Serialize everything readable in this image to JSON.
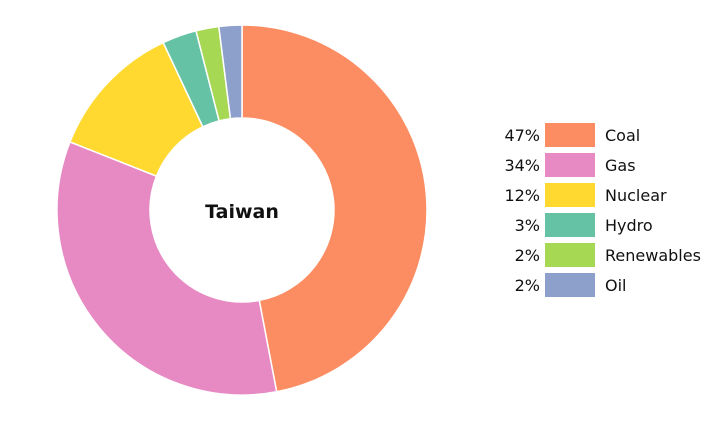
{
  "chart_data": {
    "type": "pie",
    "center_label": "Taiwan",
    "categories": [
      "Coal",
      "Gas",
      "Nuclear",
      "Hydro",
      "Renewables",
      "Oil"
    ],
    "values": [
      47,
      34,
      12,
      3,
      2,
      2
    ],
    "percent_labels": [
      "47%",
      "34%",
      "12%",
      "3%",
      "2%",
      "2%"
    ],
    "colors": [
      "#fc8d62",
      "#e78ac3",
      "#ffd92f",
      "#66c2a5",
      "#a6d854",
      "#8da0cb"
    ],
    "legend_position": "right"
  }
}
